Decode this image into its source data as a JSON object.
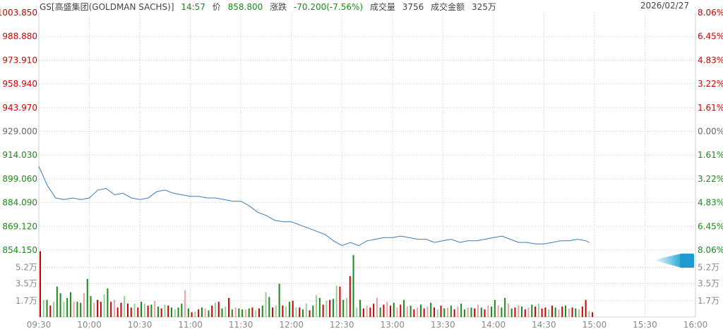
{
  "header": {
    "name": "GS[高盛集团(GOLDMAN SACHS)]",
    "time": "14:57",
    "price_label": "价",
    "price": "858.800",
    "change_label": "涨跌",
    "change": "-70.200(-7.56%)",
    "volume_label": "成交量",
    "volume": "3756",
    "amount_label": "成交金额",
    "amount": "325万",
    "date": "2026/02/27"
  },
  "colors": {
    "up": "#cc0000",
    "down": "#1a8a1a",
    "flat": "#666666",
    "line": "#3a7ab8",
    "up_light": "#f0a0a0",
    "down_light": "#99cc99"
  },
  "chart_data": {
    "type": "line",
    "prev_close": 929.0,
    "ylim": [
      854.15,
      1003.85
    ],
    "price_ticks": [
      "1003.850",
      "988.880",
      "973.910",
      "958.940",
      "943.970",
      "929.000",
      "914.030",
      "899.060",
      "884.090",
      "869.120",
      "854.150"
    ],
    "pct_ticks": [
      "8.06%",
      "6.45%",
      "4.83%",
      "3.22%",
      "1.61%",
      "0.00%",
      "1.61%",
      "3.22%",
      "4.83%",
      "6.45%",
      "8.06%"
    ],
    "volume_ticks": [
      "5.2万",
      "3.5万",
      "1.7万"
    ],
    "volume_tick_values": [
      5.2,
      3.5,
      1.7
    ],
    "x_ticks": [
      "09:30",
      "10:00",
      "10:30",
      "11:00",
      "11:30",
      "12:00",
      "12:30",
      "13:00",
      "13:30",
      "14:00",
      "14:30",
      "15:00",
      "15:30",
      "16:00"
    ],
    "price_interval_minutes": 5,
    "price": [
      907,
      895,
      887,
      886,
      887,
      886,
      887,
      892,
      893,
      889,
      890,
      887,
      886,
      887,
      891,
      892,
      890,
      889,
      888,
      888,
      887,
      887,
      886,
      885,
      885,
      882,
      878,
      876,
      873,
      872,
      872,
      870,
      868,
      866,
      864,
      860,
      857,
      859,
      857,
      860,
      861,
      862,
      862,
      863,
      862,
      861,
      861,
      859,
      860,
      861,
      859,
      860,
      860,
      861,
      862,
      863,
      861,
      859,
      859,
      858,
      858,
      859,
      860,
      860,
      861,
      860,
      858.8
    ],
    "volume_interval_minutes": 2,
    "volume_unit": "万",
    "volume": [
      6.9,
      -1.8,
      -1.8,
      1.2,
      -1.6,
      -3.2,
      -2.5,
      -1.6,
      -2.0,
      -2.6,
      1.6,
      -1.6,
      -1.5,
      2.5,
      -4.0,
      -2.2,
      1.5,
      1.8,
      1.6,
      -2.4,
      -3.0,
      1.6,
      1.8,
      1.0,
      1.5,
      -2.2,
      1.4,
      1.0,
      -1.4,
      1.0,
      -1.6,
      -1.4,
      1.2,
      -1.3,
      1.7,
      -1.1,
      0.9,
      -1.3,
      1.2,
      -1.0,
      -0.8,
      -1.0,
      -1.4,
      2.8,
      -0.9,
      0.5,
      -0.6,
      0.8,
      -1.0,
      0.9,
      -0.7,
      1.2,
      -1.5,
      1.6,
      -0.9,
      -1.1,
      2.0,
      -0.8,
      1.0,
      -0.9,
      -0.8,
      0.8,
      -0.9,
      1.0,
      -0.7,
      0.9,
      -1.2,
      -2.6,
      -2.1,
      1.0,
      -1.2,
      -3.5,
      1.2,
      -1.1,
      -1.6,
      1.7,
      -1.0,
      1.0,
      -0.8,
      -1.4,
      0.7,
      -1.2,
      -2.3,
      -2.0,
      1.3,
      -1.7,
      1.8,
      -1.9,
      -3.3,
      3.2,
      -1.8,
      -2.0,
      4.3,
      -6.5,
      -1.0,
      -1.8,
      0.9,
      1.2,
      1.0,
      1.4,
      2.0,
      -1.0,
      1.3,
      1.6,
      1.2,
      -1.5,
      1.0,
      1.3,
      -1.8,
      1.1,
      -1.2,
      0.8,
      1.0,
      -1.3,
      0.9,
      1.1,
      -1.5,
      1.0,
      -0.8,
      1.2,
      -0.9,
      1.0,
      -1.2,
      0.8,
      1.1,
      -1.4,
      -0.8,
      1.0,
      -1.0,
      0.9,
      1.3,
      -1.0,
      0.8,
      1.2,
      -1.1,
      -1.8,
      1.2,
      -1.0,
      -2.0,
      1.4,
      -0.9,
      1.0,
      1.2,
      -1.1,
      0.8,
      1.0,
      -1.3,
      1.1,
      -1.4,
      0.9,
      1.0,
      -0.8,
      1.2,
      -1.0,
      0.8,
      1.1,
      -1.2,
      0.9,
      1.0,
      -0.9,
      -0.8,
      1.1,
      1.8,
      -0.6,
      0.5
    ]
  }
}
